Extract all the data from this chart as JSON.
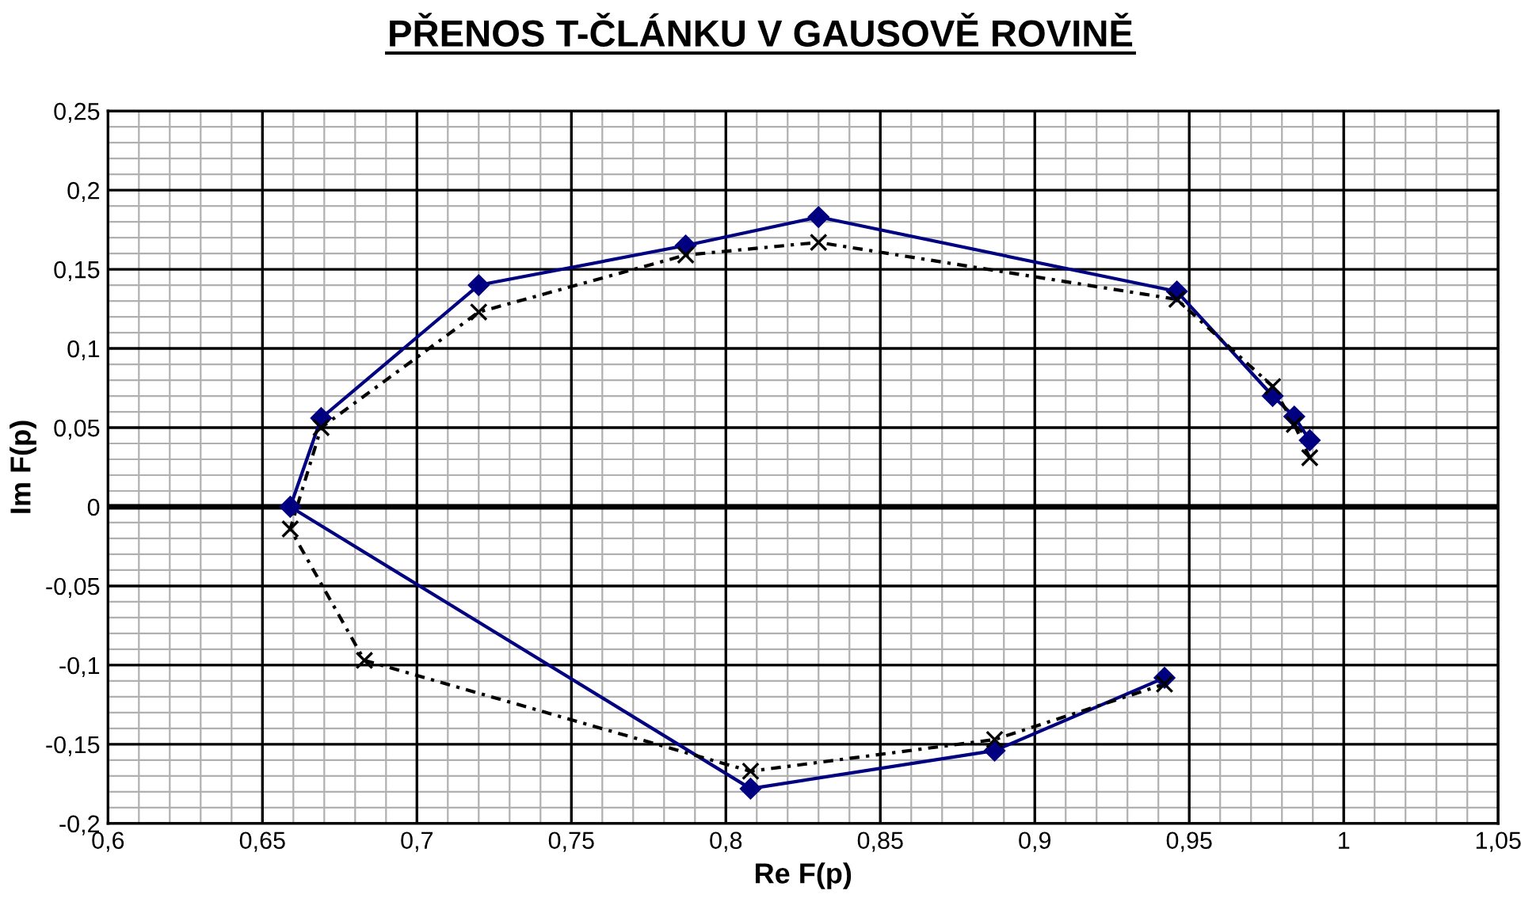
{
  "chart_data": {
    "type": "line",
    "title": "PŘENOS T-ČLÁNKU V GAUSOVĚ ROVINĚ",
    "xlabel": "Re F(p)",
    "ylabel": "Im F(p)",
    "series": [
      {
        "color": "#000080",
        "marker": "diamond",
        "line_style": "solid",
        "x": [
          0.989,
          0.984,
          0.977,
          0.946,
          0.83,
          0.787,
          0.72,
          0.669,
          0.659,
          0.808,
          0.887,
          0.942
        ],
        "values": [
          0.042,
          0.057,
          0.07,
          0.136,
          0.183,
          0.165,
          0.14,
          0.056,
          0,
          -0.178,
          -0.154,
          -0.108
        ]
      },
      {
        "color": "#000000",
        "marker": "cross",
        "line_style": "dashed",
        "x": [
          0.989,
          0.984,
          0.977,
          0.946,
          0.83,
          0.787,
          0.72,
          0.669,
          0.659,
          0.683,
          0.808,
          0.887,
          0.942
        ],
        "values": [
          0.031,
          0.052,
          0.076,
          0.131,
          0.167,
          0.159,
          0.123,
          0.05,
          -0.014,
          -0.097,
          -0.167,
          -0.147,
          -0.112
        ]
      }
    ],
    "xlim": [
      0.6,
      1.05
    ],
    "ylim": [
      -0.2,
      0.25
    ],
    "xticks": [
      {
        "value": 0.6,
        "label": "0,6"
      },
      {
        "value": 0.61,
        "label": null
      },
      {
        "value": 0.62,
        "label": null
      },
      {
        "value": 0.63,
        "label": null
      },
      {
        "value": 0.64,
        "label": null
      },
      {
        "value": 0.65,
        "label": "0,65"
      },
      {
        "value": 0.66,
        "label": null
      },
      {
        "value": 0.67,
        "label": null
      },
      {
        "value": 0.68,
        "label": null
      },
      {
        "value": 0.69,
        "label": null
      },
      {
        "value": 0.7,
        "label": "0,7"
      },
      {
        "value": 0.71,
        "label": null
      },
      {
        "value": 0.72,
        "label": null
      },
      {
        "value": 0.73,
        "label": null
      },
      {
        "value": 0.74,
        "label": null
      },
      {
        "value": 0.75,
        "label": "0,75"
      },
      {
        "value": 0.76,
        "label": null
      },
      {
        "value": 0.77,
        "label": null
      },
      {
        "value": 0.78,
        "label": null
      },
      {
        "value": 0.79,
        "label": null
      },
      {
        "value": 0.8,
        "label": "0,8"
      },
      {
        "value": 0.81,
        "label": null
      },
      {
        "value": 0.82,
        "label": null
      },
      {
        "value": 0.83,
        "label": null
      },
      {
        "value": 0.84,
        "label": null
      },
      {
        "value": 0.85,
        "label": "0,85"
      },
      {
        "value": 0.86,
        "label": null
      },
      {
        "value": 0.87,
        "label": null
      },
      {
        "value": 0.88,
        "label": null
      },
      {
        "value": 0.89,
        "label": null
      },
      {
        "value": 0.9,
        "label": "0,9"
      },
      {
        "value": 0.91,
        "label": null
      },
      {
        "value": 0.92,
        "label": null
      },
      {
        "value": 0.93,
        "label": null
      },
      {
        "value": 0.94,
        "label": null
      },
      {
        "value": 0.95,
        "label": "0,95"
      },
      {
        "value": 0.96,
        "label": null
      },
      {
        "value": 0.97,
        "label": null
      },
      {
        "value": 0.98,
        "label": null
      },
      {
        "value": 0.99,
        "label": null
      },
      1,
      {
        "value": 1.01,
        "label": null
      },
      {
        "value": 1.02,
        "label": null
      },
      {
        "value": 1.03,
        "label": null
      },
      {
        "value": 1.04,
        "label": null
      },
      {
        "value": 1.05,
        "label": "1,05"
      }
    ],
    "yticks": [
      {
        "value": -0.2,
        "label": "-0,2"
      },
      {
        "value": -0.19,
        "label": null
      },
      {
        "value": -0.18,
        "label": null
      },
      {
        "value": -0.17,
        "label": null
      },
      {
        "value": -0.16,
        "label": null
      },
      {
        "value": -0.15,
        "label": "-0,15"
      },
      {
        "value": -0.14,
        "label": null
      },
      {
        "value": -0.13,
        "label": null
      },
      {
        "value": -0.12,
        "label": null
      },
      {
        "value": -0.11,
        "label": null
      },
      {
        "value": -0.1,
        "label": "-0,1"
      },
      {
        "value": -0.09,
        "label": null
      },
      {
        "value": -0.08,
        "label": null
      },
      {
        "value": -0.07,
        "label": null
      },
      {
        "value": -0.06,
        "label": null
      },
      {
        "value": -0.05,
        "label": "-0,05"
      },
      {
        "value": -0.04,
        "label": null
      },
      {
        "value": -0.03,
        "label": null
      },
      {
        "value": -0.02,
        "label": null
      },
      {
        "value": -0.01,
        "label": null
      },
      0,
      {
        "value": 0.01,
        "label": null
      },
      {
        "value": 0.02,
        "label": null
      },
      {
        "value": 0.03,
        "label": null
      },
      {
        "value": 0.04,
        "label": null
      },
      {
        "value": 0.05,
        "label": "0,05"
      },
      {
        "value": 0.06,
        "label": null
      },
      {
        "value": 0.07,
        "label": null
      },
      {
        "value": 0.08,
        "label": null
      },
      {
        "value": 0.09,
        "label": null
      },
      {
        "value": 0.1,
        "label": "0,1"
      },
      {
        "value": 0.11,
        "label": null
      },
      {
        "value": 0.12,
        "label": null
      },
      {
        "value": 0.13,
        "label": null
      },
      {
        "value": 0.14,
        "label": null
      },
      {
        "value": 0.15,
        "label": "0,15"
      },
      {
        "value": 0.16,
        "label": null
      },
      {
        "value": 0.17,
        "label": null
      },
      {
        "value": 0.18,
        "label": null
      },
      {
        "value": 0.19,
        "label": null
      },
      {
        "value": 0.2,
        "label": "0,2"
      },
      {
        "value": 0.21,
        "label": null
      },
      {
        "value": 0.22,
        "label": null
      },
      {
        "value": 0.23,
        "label": null
      },
      {
        "value": 0.24,
        "label": null
      },
      {
        "value": 0.25,
        "label": "0,25"
      }
    ],
    "ref_lines": [
      {
        "axis": "y",
        "value": 0,
        "color": "#000000"
      }
    ],
    "grid": true
  }
}
